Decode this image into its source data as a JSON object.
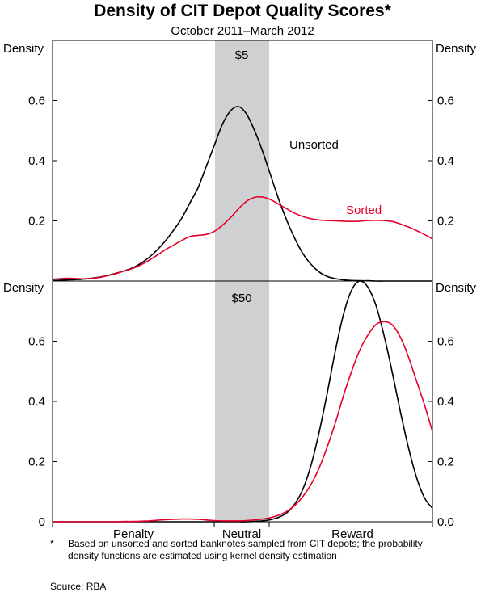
{
  "chart_data": {
    "type": "line",
    "title": "Density of CIT Depot Quality Scores*",
    "subtitle": "October 2011–March 2012",
    "x_categories": [
      "Penalty",
      "Neutral",
      "Reward"
    ],
    "colors": {
      "unsorted": "#000000",
      "sorted": "#e4002b",
      "band": "#cfd0d2"
    },
    "panels": [
      {
        "name": "$5",
        "ylabel_left": "Density",
        "ylabel_right": "Density",
        "ylim": [
          0,
          0.8
        ],
        "yticks": [
          0.2,
          0.4,
          0.6
        ],
        "tick_labels": [
          "0.2",
          "0.4",
          "0.6"
        ],
        "series": [
          {
            "name": "Unsorted",
            "x": [
              0,
              10,
              20,
              30,
              40,
              50,
              60,
              70,
              80,
              90,
              100,
              110,
              120,
              130,
              140,
              150,
              160,
              170,
              180,
              190,
              200,
              210,
              220,
              230,
              240,
              250,
              260,
              270,
              280,
              290,
              300,
              310,
              320,
              330,
              340,
              350,
              360,
              370,
              380,
              390,
              400,
              410,
              420,
              430,
              440,
              450,
              460,
              470
            ],
            "values": [
              0.002,
              0.003,
              0.004,
              0.005,
              0.007,
              0.01,
              0.014,
              0.02,
              0.027,
              0.035,
              0.045,
              0.06,
              0.08,
              0.105,
              0.135,
              0.17,
              0.21,
              0.26,
              0.31,
              0.38,
              0.45,
              0.52,
              0.565,
              0.58,
              0.555,
              0.5,
              0.43,
              0.35,
              0.27,
              0.2,
              0.14,
              0.09,
              0.055,
              0.03,
              0.015,
              0.008,
              0.004,
              0.002,
              0.001,
              0.001,
              0,
              0,
              0,
              0,
              0,
              0,
              0,
              0
            ]
          },
          {
            "name": "Sorted",
            "x": [
              0,
              10,
              20,
              30,
              40,
              50,
              60,
              70,
              80,
              90,
              100,
              110,
              120,
              130,
              140,
              150,
              160,
              170,
              180,
              190,
              200,
              210,
              220,
              230,
              240,
              250,
              260,
              270,
              280,
              290,
              300,
              310,
              320,
              330,
              340,
              350,
              360,
              370,
              380,
              390,
              400,
              410,
              420,
              430,
              440,
              450,
              460,
              470
            ],
            "values": [
              0.006,
              0.008,
              0.009,
              0.008,
              0.007,
              0.009,
              0.013,
              0.019,
              0.026,
              0.034,
              0.043,
              0.055,
              0.07,
              0.087,
              0.105,
              0.12,
              0.135,
              0.148,
              0.152,
              0.155,
              0.165,
              0.185,
              0.21,
              0.24,
              0.265,
              0.278,
              0.279,
              0.27,
              0.255,
              0.24,
              0.225,
              0.214,
              0.207,
              0.203,
              0.201,
              0.2,
              0.199,
              0.198,
              0.199,
              0.201,
              0.202,
              0.201,
              0.198,
              0.19,
              0.18,
              0.168,
              0.155,
              0.14
            ]
          }
        ]
      },
      {
        "name": "$50",
        "ylabel_left": "Density",
        "ylabel_right": "Density",
        "ylim": [
          0,
          0.8
        ],
        "yticks": [
          0,
          0.2,
          0.4,
          0.6
        ],
        "tick_labels": [
          "0",
          "0.2",
          "0.4",
          "0.6"
        ],
        "tick_labels_right": [
          "0.0",
          "0.2",
          "0.4",
          "0.6"
        ],
        "series": [
          {
            "name": "Unsorted",
            "x": [
              0,
              10,
              20,
              30,
              40,
              50,
              60,
              70,
              80,
              90,
              100,
              110,
              120,
              130,
              140,
              150,
              160,
              170,
              180,
              190,
              200,
              210,
              220,
              230,
              240,
              250,
              260,
              270,
              280,
              290,
              300,
              310,
              320,
              330,
              340,
              350,
              360,
              370,
              380,
              390,
              400,
              410,
              420,
              430,
              440,
              450,
              460,
              470
            ],
            "values": [
              0,
              0,
              0,
              0,
              0,
              0,
              0,
              0,
              0,
              0,
              0,
              0,
              0,
              0,
              0,
              0,
              0,
              0,
              0,
              0,
              0,
              0,
              0,
              0,
              0,
              0.001,
              0.003,
              0.007,
              0.015,
              0.03,
              0.06,
              0.11,
              0.19,
              0.3,
              0.43,
              0.57,
              0.69,
              0.77,
              0.8,
              0.78,
              0.72,
              0.62,
              0.5,
              0.37,
              0.25,
              0.15,
              0.08,
              0.045
            ]
          },
          {
            "name": "Sorted",
            "x": [
              0,
              10,
              20,
              30,
              40,
              50,
              60,
              70,
              80,
              90,
              100,
              110,
              120,
              130,
              140,
              150,
              160,
              170,
              180,
              190,
              200,
              210,
              220,
              230,
              240,
              250,
              260,
              270,
              280,
              290,
              300,
              310,
              320,
              330,
              340,
              350,
              360,
              370,
              380,
              390,
              400,
              410,
              420,
              430,
              440,
              450,
              460,
              470
            ],
            "values": [
              0,
              0,
              0,
              0,
              0,
              0,
              0,
              0,
              0,
              0.001,
              0.001,
              0.002,
              0.003,
              0.005,
              0.007,
              0.008,
              0.009,
              0.009,
              0.008,
              0.006,
              0.004,
              0.003,
              0.003,
              0.003,
              0.004,
              0.006,
              0.009,
              0.014,
              0.022,
              0.035,
              0.055,
              0.085,
              0.125,
              0.18,
              0.25,
              0.33,
              0.42,
              0.5,
              0.57,
              0.62,
              0.655,
              0.665,
              0.655,
              0.615,
              0.55,
              0.47,
              0.39,
              0.3
            ]
          }
        ]
      }
    ]
  },
  "footnote": {
    "marker": "*",
    "text": "Based on unsorted and sorted banknotes sampled from CIT depots; the probability density functions are estimated using kernel density estimation"
  },
  "source": "Source: RBA"
}
